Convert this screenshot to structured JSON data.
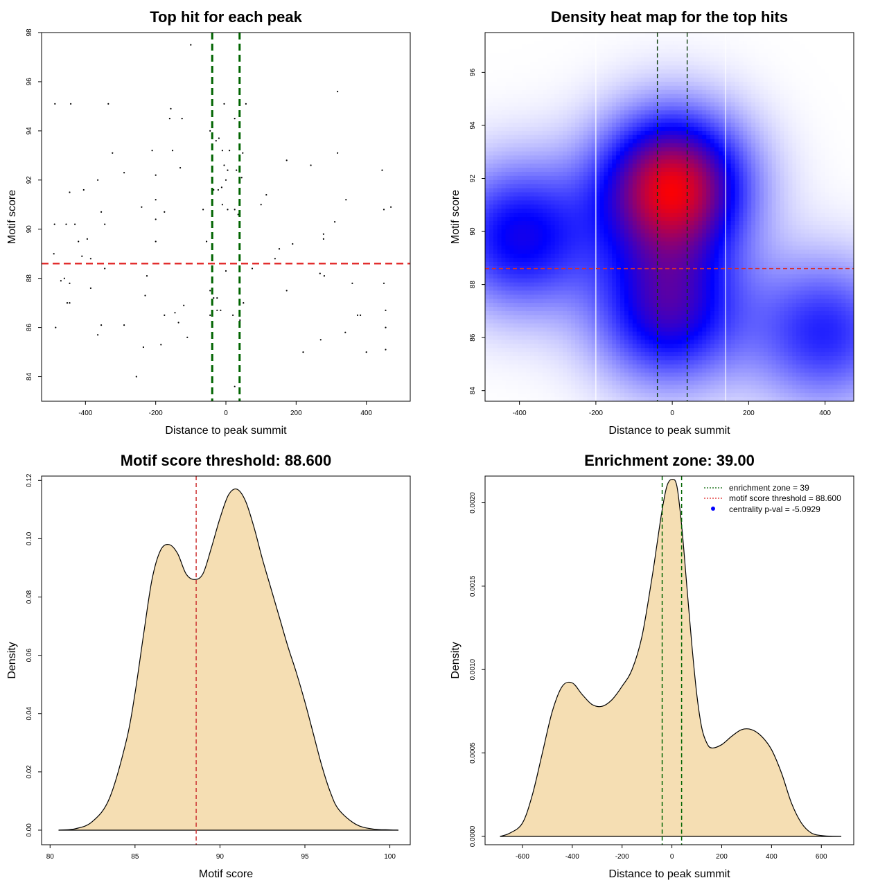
{
  "chart_data": [
    {
      "type": "scatter",
      "title": "Top hit for each peak",
      "xlabel": "Distance to peak summit",
      "ylabel": "Motif score",
      "xlim": [
        -525,
        525
      ],
      "ylim": [
        83,
        98
      ],
      "xticks": [
        -400,
        -200,
        0,
        200,
        400
      ],
      "yticks": [
        84,
        86,
        88,
        90,
        92,
        94,
        96,
        98
      ],
      "vlines": [
        -39,
        39
      ],
      "hline": 88.6,
      "points": [
        [
          -100,
          97.5
        ],
        [
          318,
          95.6
        ],
        [
          -487,
          95.1
        ],
        [
          -442,
          95.1
        ],
        [
          -335,
          95.1
        ],
        [
          -5,
          95.1
        ],
        [
          57,
          95.1
        ],
        [
          -157,
          94.9
        ],
        [
          -160,
          94.5
        ],
        [
          -125,
          94.5
        ],
        [
          25,
          94.5
        ],
        [
          -45,
          94.0
        ],
        [
          -28,
          93.6
        ],
        [
          -20,
          93.7
        ],
        [
          -323,
          93.1
        ],
        [
          -210,
          93.2
        ],
        [
          -152,
          93.2
        ],
        [
          -10,
          93.2
        ],
        [
          10,
          93.2
        ],
        [
          48,
          93.1
        ],
        [
          318,
          93.1
        ],
        [
          -365,
          92.0
        ],
        [
          -290,
          92.3
        ],
        [
          -200,
          92.2
        ],
        [
          -130,
          92.5
        ],
        [
          -5,
          92.6
        ],
        [
          5,
          92.4
        ],
        [
          30,
          92.4
        ],
        [
          45,
          92.1
        ],
        [
          173,
          92.8
        ],
        [
          242,
          92.6
        ],
        [
          445,
          92.4
        ],
        [
          -445,
          91.5
        ],
        [
          -405,
          91.6
        ],
        [
          -200,
          91.2
        ],
        [
          -40,
          92.1
        ],
        [
          -22,
          91.6
        ],
        [
          -12,
          91.7
        ],
        [
          0,
          92.0
        ],
        [
          -35,
          91.6
        ],
        [
          115,
          91.4
        ],
        [
          342,
          91.2
        ],
        [
          -488,
          90.2
        ],
        [
          -455,
          90.2
        ],
        [
          -355,
          90.7
        ],
        [
          -345,
          90.2
        ],
        [
          -240,
          90.9
        ],
        [
          -200,
          90.4
        ],
        [
          -175,
          90.7
        ],
        [
          -65,
          90.8
        ],
        [
          -40,
          90.3
        ],
        [
          -10,
          91.0
        ],
        [
          5,
          90.8
        ],
        [
          25,
          90.8
        ],
        [
          35,
          90.6
        ],
        [
          100,
          91.0
        ],
        [
          310,
          90.3
        ],
        [
          450,
          90.8
        ],
        [
          470,
          90.9
        ],
        [
          -430,
          90.2
        ],
        [
          -420,
          89.5
        ],
        [
          -395,
          89.6
        ],
        [
          -200,
          89.5
        ],
        [
          -55,
          89.5
        ],
        [
          152,
          89.2
        ],
        [
          190,
          89.4
        ],
        [
          278,
          89.8
        ],
        [
          278,
          89.6
        ],
        [
          -490,
          89.0
        ],
        [
          -410,
          88.9
        ],
        [
          -385,
          88.8
        ],
        [
          -345,
          88.4
        ],
        [
          140,
          88.8
        ],
        [
          75,
          88.4
        ],
        [
          -40,
          88.6
        ],
        [
          -460,
          88.0
        ],
        [
          -225,
          88.1
        ],
        [
          -385,
          87.6
        ],
        [
          -470,
          87.9
        ],
        [
          -445,
          87.8
        ],
        [
          0,
          88.3
        ],
        [
          268,
          88.2
        ],
        [
          280,
          88.1
        ],
        [
          360,
          87.8
        ],
        [
          450,
          87.8
        ],
        [
          -45,
          87.5
        ],
        [
          -35,
          87.2
        ],
        [
          -25,
          87.2
        ],
        [
          -452,
          87.0
        ],
        [
          -445,
          87.0
        ],
        [
          -230,
          87.3
        ],
        [
          -120,
          86.9
        ],
        [
          50,
          87.0
        ],
        [
          173,
          87.5
        ],
        [
          -175,
          86.5
        ],
        [
          -145,
          86.6
        ],
        [
          -45,
          86.5
        ],
        [
          -25,
          86.7
        ],
        [
          -15,
          86.7
        ],
        [
          20,
          86.5
        ],
        [
          40,
          86.3
        ],
        [
          375,
          86.5
        ],
        [
          383,
          86.5
        ],
        [
          455,
          86.7
        ],
        [
          -485,
          86.0
        ],
        [
          -355,
          86.1
        ],
        [
          -290,
          86.1
        ],
        [
          -135,
          86.2
        ],
        [
          -110,
          85.6
        ],
        [
          270,
          85.5
        ],
        [
          340,
          85.8
        ],
        [
          455,
          86.0
        ],
        [
          -365,
          85.7
        ],
        [
          -235,
          85.2
        ],
        [
          -185,
          85.3
        ],
        [
          220,
          85.0
        ],
        [
          400,
          85.0
        ],
        [
          455,
          85.1
        ],
        [
          -255,
          84.0
        ],
        [
          25,
          83.6
        ]
      ]
    },
    {
      "type": "heatmap",
      "title": "Density heat map for the top hits",
      "xlabel": "Distance to peak summit",
      "ylabel": "Motif score",
      "xlim": [
        -490,
        475
      ],
      "ylim": [
        83.6,
        97.5
      ],
      "xticks": [
        -400,
        -200,
        0,
        200,
        400
      ],
      "yticks": [
        84,
        86,
        88,
        90,
        92,
        94,
        96
      ],
      "vlines": [
        -39,
        39
      ],
      "hline": 88.6,
      "white_lines": [
        -200,
        140
      ],
      "hotspots": [
        {
          "x": 0,
          "y": 91.7,
          "intensity": 1.0
        },
        {
          "x": -10,
          "y": 87.0,
          "intensity": 0.62
        },
        {
          "x": -400,
          "y": 89.8,
          "intensity": 0.55
        },
        {
          "x": 400,
          "y": 86.2,
          "intensity": 0.45
        }
      ]
    },
    {
      "type": "area",
      "title": "Motif score threshold: 88.600",
      "xlabel": "Motif score",
      "ylabel": "Density",
      "xlim": [
        79.5,
        101.2
      ],
      "ylim": [
        -0.005,
        0.1215
      ],
      "xticks": [
        80,
        85,
        90,
        95,
        100
      ],
      "yticks": [
        0.0,
        0.02,
        0.04,
        0.06,
        0.08,
        0.1,
        0.12
      ],
      "ytick_labels": [
        "0.00",
        "0.02",
        "0.04",
        "0.06",
        "0.08",
        "0.10",
        "0.12"
      ],
      "vline": 88.6,
      "fill": "#f5deb3",
      "x": [
        80.5,
        81.5,
        82.5,
        83.5,
        84.5,
        85.0,
        85.5,
        86.0,
        86.5,
        87.0,
        87.5,
        88.0,
        88.5,
        89.0,
        89.5,
        90.0,
        90.5,
        91.0,
        91.5,
        92.0,
        92.5,
        93.0,
        93.5,
        94.0,
        94.5,
        95.0,
        95.5,
        96.0,
        96.5,
        97.0,
        98.0,
        99.0,
        100.0,
        100.5
      ],
      "y": [
        0.0,
        0.0005,
        0.003,
        0.011,
        0.031,
        0.047,
        0.067,
        0.086,
        0.096,
        0.098,
        0.095,
        0.088,
        0.086,
        0.088,
        0.097,
        0.107,
        0.115,
        0.117,
        0.113,
        0.104,
        0.093,
        0.083,
        0.073,
        0.063,
        0.054,
        0.044,
        0.033,
        0.022,
        0.013,
        0.007,
        0.002,
        0.0004,
        0.0001,
        0.0
      ]
    },
    {
      "type": "area",
      "title": "Enrichment zone: 39.00",
      "xlabel": "Distance to peak summit",
      "ylabel": "Density",
      "xlim": [
        -750,
        730
      ],
      "ylim": [
        -5e-05,
        0.00216
      ],
      "xticks": [
        -600,
        -400,
        -200,
        0,
        200,
        400,
        600
      ],
      "yticks": [
        0.0,
        0.0005,
        0.001,
        0.0015,
        0.002
      ],
      "ytick_labels": [
        "0.0000",
        "0.0005",
        "0.0010",
        "0.0015",
        "0.0020"
      ],
      "vlines": [
        -39,
        39
      ],
      "fill": "#f5deb3",
      "legend": [
        {
          "label": "enrichment zone = 39",
          "color": "#006400",
          "style": "dotted"
        },
        {
          "label": "motif score threshold = 88.600",
          "color": "#dd2222",
          "style": "dotted"
        },
        {
          "label": "centrality p-val = -5.0929",
          "color": "#0000ff",
          "style": "point"
        }
      ],
      "x": [
        -690,
        -650,
        -600,
        -560,
        -520,
        -480,
        -440,
        -400,
        -360,
        -320,
        -280,
        -240,
        -200,
        -160,
        -120,
        -80,
        -60,
        -40,
        -20,
        0,
        20,
        40,
        60,
        80,
        100,
        120,
        140,
        160,
        200,
        240,
        280,
        320,
        360,
        400,
        440,
        480,
        520,
        560,
        600,
        640,
        680
      ],
      "y": [
        0.0,
        2e-05,
        8e-05,
        0.00025,
        0.0005,
        0.00075,
        0.0009,
        0.00092,
        0.00085,
        0.00079,
        0.00078,
        0.00082,
        0.0009,
        0.001,
        0.0012,
        0.00155,
        0.00175,
        0.00195,
        0.0021,
        0.00214,
        0.0021,
        0.00185,
        0.0015,
        0.00115,
        0.00085,
        0.00065,
        0.00056,
        0.00053,
        0.00055,
        0.0006,
        0.00064,
        0.00064,
        0.0006,
        0.00052,
        0.00038,
        0.0002,
        8e-05,
        2e-05,
        5e-06,
        1e-06,
        0.0
      ]
    }
  ]
}
